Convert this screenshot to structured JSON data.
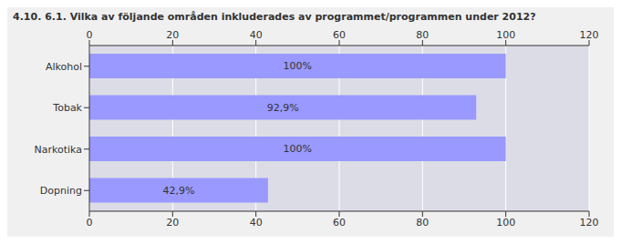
{
  "chart_data": {
    "type": "bar",
    "title": "4.10. 6.1. Vilka av följande områden inkluderades av programmet/programmen under 2012?",
    "orientation": "horizontal",
    "categories": [
      "Alkohol",
      "Tobak",
      "Narkotika",
      "Dopning"
    ],
    "values": [
      100,
      92.9,
      100,
      42.9
    ],
    "value_labels": [
      "100%",
      "92,9%",
      "100%",
      "42,9%"
    ],
    "data_labels": true,
    "color": "#9999ff",
    "xlim": [
      0,
      120
    ],
    "xticks": [
      0,
      20,
      40,
      60,
      80,
      100,
      120
    ],
    "grid": true
  }
}
